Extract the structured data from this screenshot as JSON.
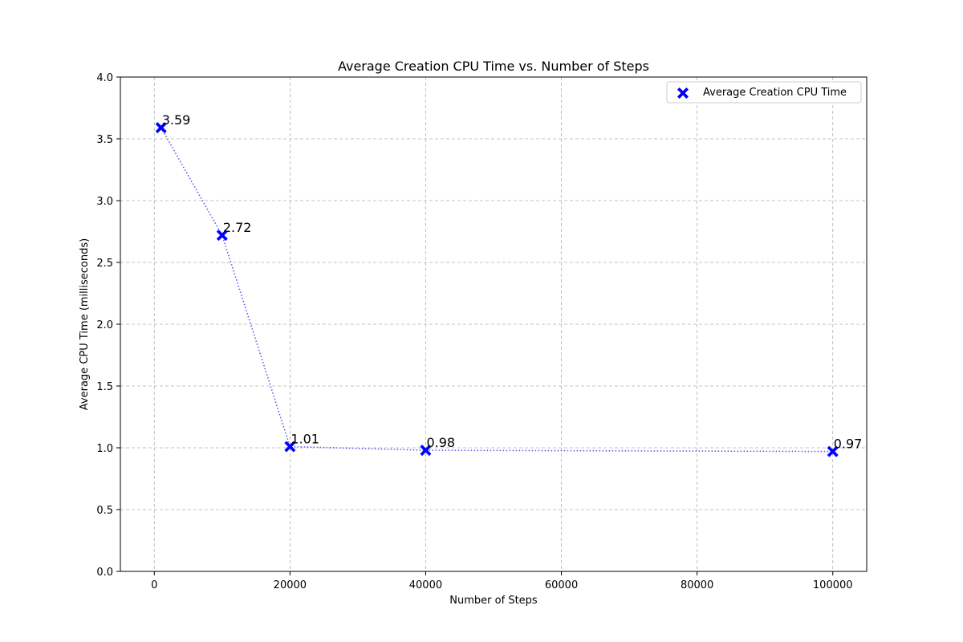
{
  "chart_data": {
    "type": "line",
    "title": "Average Creation CPU Time vs. Number of Steps",
    "xlabel": "Number of Steps",
    "ylabel": "Average CPU Time (milliseconds)",
    "xlim": [
      -5000,
      105000
    ],
    "ylim": [
      0,
      4.0
    ],
    "xticks": [
      0,
      20000,
      40000,
      60000,
      80000,
      100000
    ],
    "yticks": [
      0.0,
      0.5,
      1.0,
      1.5,
      2.0,
      2.5,
      3.0,
      3.5,
      4.0
    ],
    "ytick_labels": [
      "0.0",
      "0.5",
      "1.0",
      "1.5",
      "2.0",
      "2.5",
      "3.0",
      "3.5",
      "4.0"
    ],
    "grid": true,
    "legend_position": "top-right",
    "series": [
      {
        "name": "Average Creation CPU Time",
        "color": "#0000ff",
        "line_color": "#5a5af0",
        "marker": "x-filled",
        "line_style": "dotted",
        "x": [
          1000,
          10000,
          20000,
          40000,
          100000
        ],
        "y": [
          3.59,
          2.72,
          1.01,
          0.98,
          0.97
        ],
        "labels": [
          "3.59",
          "2.72",
          "1.01",
          "0.98",
          "0.97"
        ]
      }
    ]
  }
}
